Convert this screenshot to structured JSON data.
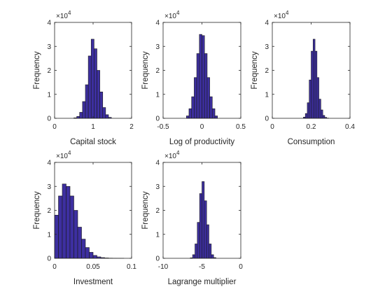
{
  "chart_data": [
    {
      "type": "bar",
      "xlabel": "Capital stock",
      "ylabel": "Frequency",
      "y_exponent_label": "×10^4",
      "xlim": [
        0,
        2
      ],
      "ylim": [
        0,
        40000
      ],
      "xticks": [
        "0",
        "1",
        "2"
      ],
      "yticks": [
        "0",
        "1",
        "2",
        "3",
        "4"
      ],
      "bin_edges": [
        0.5,
        0.575,
        0.65,
        0.725,
        0.8,
        0.875,
        0.95,
        1.025,
        1.1,
        1.175,
        1.25,
        1.325,
        1.4,
        1.475
      ],
      "values": [
        200,
        800,
        2500,
        7000,
        14000,
        26000,
        33000,
        29000,
        20000,
        11000,
        4500,
        1500,
        400
      ]
    },
    {
      "type": "bar",
      "xlabel": "Log of productivity",
      "ylabel": "Frequency",
      "y_exponent_label": "×10^4",
      "xlim": [
        -0.5,
        0.5
      ],
      "ylim": [
        0,
        40000
      ],
      "xticks": [
        "-0.5",
        "0",
        "0.5"
      ],
      "yticks": [
        "0",
        "1",
        "2",
        "3",
        "4"
      ],
      "bin_edges": [
        -0.2,
        -0.167,
        -0.133,
        -0.1,
        -0.067,
        -0.033,
        0.0,
        0.033,
        0.067,
        0.1,
        0.133,
        0.167,
        0.2
      ],
      "values": [
        1000,
        4000,
        9000,
        17000,
        27000,
        35000,
        34500,
        27000,
        17000,
        9000,
        4000,
        1000
      ]
    },
    {
      "type": "bar",
      "xlabel": "Consumption",
      "ylabel": "Frequency",
      "y_exponent_label": "×10^4",
      "xlim": [
        0,
        0.4
      ],
      "ylim": [
        0,
        40000
      ],
      "xticks": [
        "0",
        "0.2",
        "0.4"
      ],
      "yticks": [
        "0",
        "1",
        "2",
        "3",
        "4"
      ],
      "bin_edges": [
        0.16,
        0.17,
        0.18,
        0.19,
        0.2,
        0.21,
        0.22,
        0.23,
        0.24,
        0.25,
        0.26,
        0.27,
        0.28,
        0.29
      ],
      "values": [
        500,
        2000,
        6500,
        16000,
        28000,
        33000,
        28000,
        17000,
        8000,
        3500,
        1200,
        400,
        100
      ]
    },
    {
      "type": "bar",
      "xlabel": "Investment",
      "ylabel": "Frequency",
      "y_exponent_label": "×10^4",
      "xlim": [
        0,
        0.1
      ],
      "ylim": [
        0,
        40000
      ],
      "xticks": [
        "0",
        "0.05",
        "0.1"
      ],
      "yticks": [
        "0",
        "1",
        "2",
        "3",
        "4"
      ],
      "bin_edges": [
        0.0,
        0.005,
        0.01,
        0.015,
        0.02,
        0.025,
        0.03,
        0.035,
        0.04,
        0.045,
        0.05,
        0.055,
        0.06,
        0.065,
        0.07,
        0.075,
        0.08,
        0.085,
        0.09
      ],
      "values": [
        18000,
        26000,
        31000,
        30000,
        26000,
        20000,
        13000,
        8000,
        4500,
        2500,
        1200,
        600,
        300,
        150,
        80,
        40,
        20,
        10
      ]
    },
    {
      "type": "bar",
      "xlabel": "Lagrange multiplier",
      "ylabel": "Frequency",
      "y_exponent_label": "×10^4",
      "xlim": [
        -10,
        0
      ],
      "ylim": [
        0,
        40000
      ],
      "xticks": [
        "-10",
        "-5",
        "0"
      ],
      "yticks": [
        "0",
        "1",
        "2",
        "3",
        "4"
      ],
      "bin_edges": [
        -6.5,
        -6.2,
        -5.9,
        -5.6,
        -5.3,
        -5.0,
        -4.7,
        -4.4,
        -4.1,
        -3.8,
        -3.5,
        -3.2
      ],
      "values": [
        200,
        1500,
        6000,
        15000,
        27000,
        32000,
        24000,
        14000,
        6000,
        1500,
        300
      ]
    }
  ]
}
